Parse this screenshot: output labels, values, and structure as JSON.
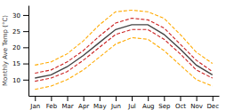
{
  "chart_data": {
    "type": "line",
    "ylabel": "Monthly Ave Temp (°C)",
    "categories": [
      "Jan",
      "Feb",
      "Mar",
      "Apr",
      "May",
      "Jun",
      "Jul",
      "Aug",
      "Sep",
      "Oct",
      "Nov",
      "Dec"
    ],
    "series": [
      {
        "color": "#ffaa00",
        "line_style": "dashed",
        "values": [
          7.0,
          8.0,
          10.0,
          13.0,
          17.0,
          21.0,
          23.0,
          22.5,
          19.0,
          14.5,
          10.0,
          8.0
        ]
      },
      {
        "color": "#ffaa00",
        "line_style": "dashed",
        "values": [
          14.5,
          15.5,
          18.0,
          22.0,
          27.0,
          31.0,
          31.5,
          31.0,
          29.0,
          24.0,
          18.5,
          15.0
        ]
      },
      {
        "color": "#cc2222",
        "line_style": "dashed",
        "values": [
          9.5,
          10.5,
          12.5,
          16.0,
          20.0,
          24.0,
          25.5,
          25.5,
          22.5,
          18.0,
          13.0,
          10.5
        ]
      },
      {
        "color": "#cc2222",
        "line_style": "dashed",
        "values": [
          12.0,
          13.0,
          15.5,
          19.0,
          23.5,
          27.5,
          29.0,
          28.5,
          26.0,
          21.0,
          16.0,
          12.5
        ]
      },
      {
        "color": "#444444",
        "line_style": "solid",
        "values": [
          10.5,
          11.5,
          14.0,
          17.5,
          21.5,
          25.5,
          27.0,
          27.0,
          24.0,
          19.5,
          14.5,
          11.5
        ]
      }
    ],
    "ylim": [
      5,
      33
    ],
    "yticks": [
      10,
      15,
      20,
      25,
      30
    ],
    "grid": false
  }
}
